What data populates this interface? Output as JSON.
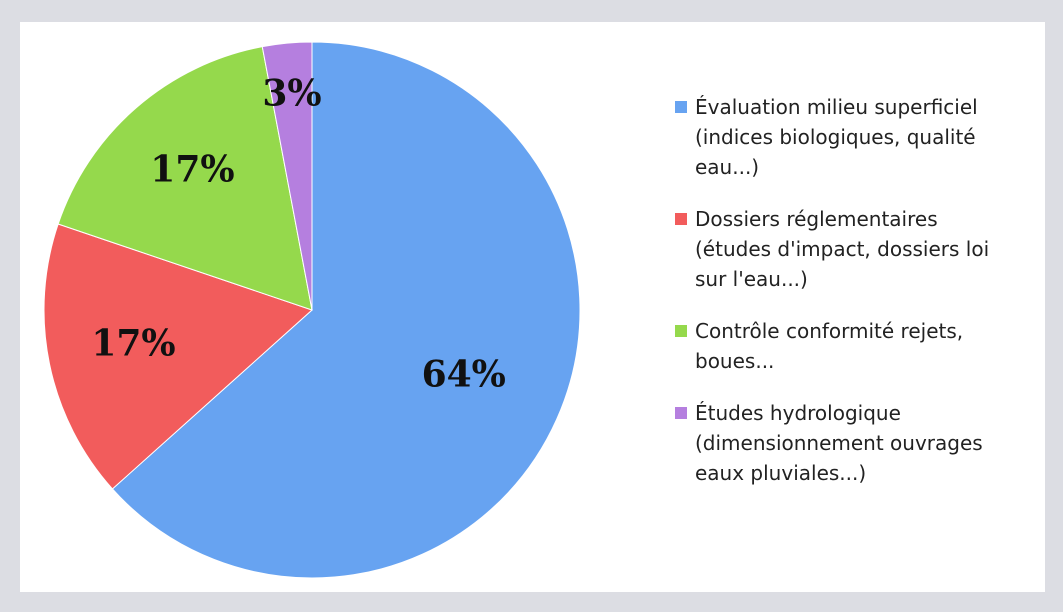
{
  "chart_data": {
    "type": "pie",
    "categories": [
      "Évaluation milieu superficiel (indices biologiques, qualité eau...)",
      "Dossiers réglementaires (études d'impact, dossiers loi sur l'eau...)",
      "Contrôle conformité rejets, boues...",
      "Études hydrologique (dimensionnement ouvrages eaux pluviales...)"
    ],
    "values": [
      64,
      17,
      17,
      3
    ],
    "value_labels": [
      "64%",
      "17%",
      "17%",
      "3%"
    ],
    "colors": [
      "#67a3f1",
      "#f25c5c",
      "#95d94c",
      "#b57fdf"
    ],
    "legend": "right"
  }
}
